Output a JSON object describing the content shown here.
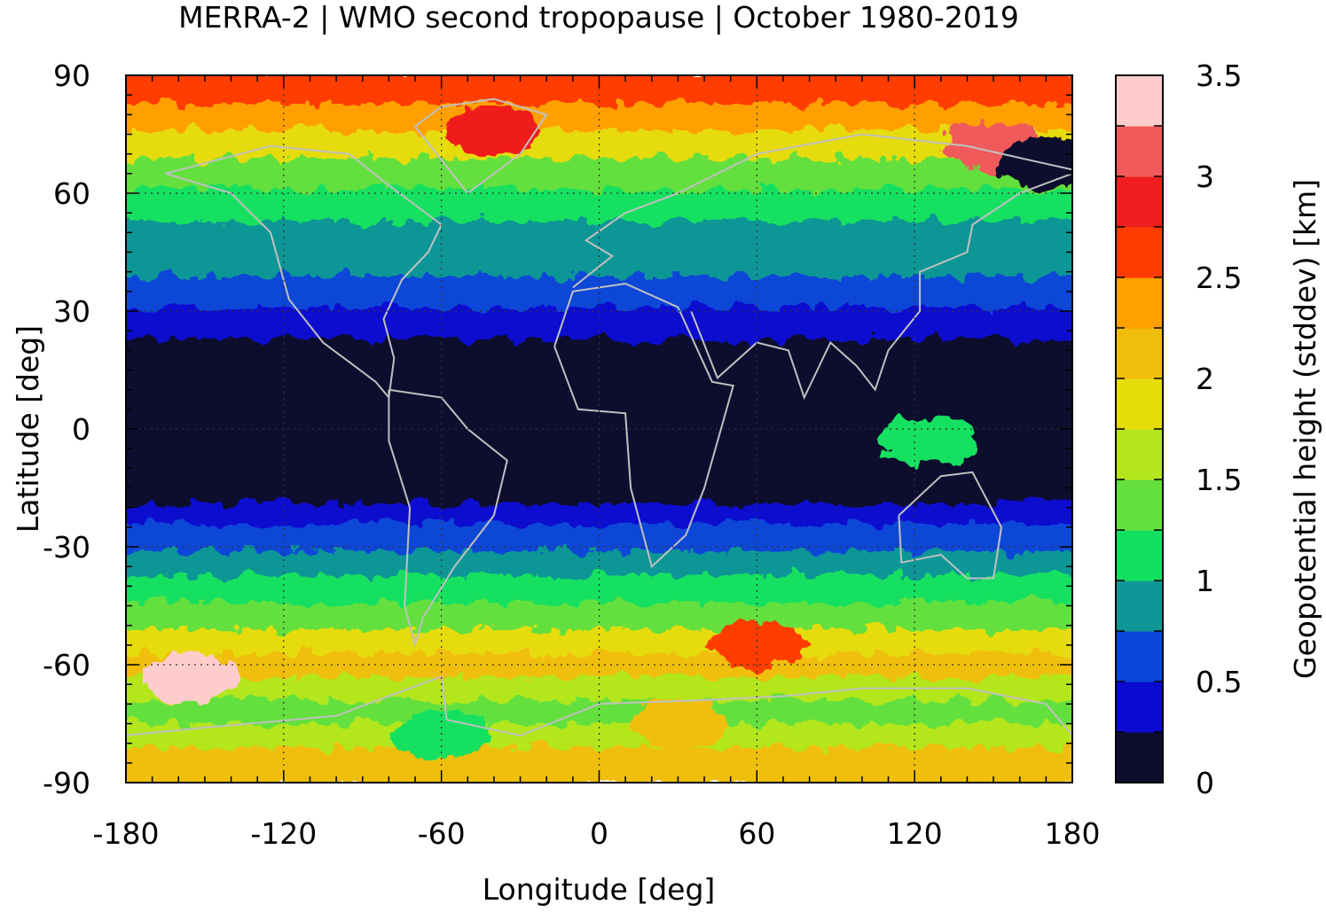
{
  "title": "MERRA-2 | WMO second tropopause | October 1980-2019",
  "xlabel": "Longitude [deg]",
  "ylabel": "Latitude [deg]",
  "x_ticks": [
    "-180",
    "-120",
    "-60",
    "0",
    "60",
    "120",
    "180"
  ],
  "y_ticks": [
    "90",
    "60",
    "30",
    "0",
    "-30",
    "-60",
    "-90"
  ],
  "colorbar": {
    "label": "Geopotential height (stddev) [km]",
    "tick_labels": [
      "0",
      "0.5",
      "1",
      "1.5",
      "2",
      "2.5",
      "3",
      "3.5"
    ],
    "range": [
      0,
      3.5
    ],
    "colors": [
      "#0d0d2e",
      "#0a0ad0",
      "#0a46d8",
      "#0f9696",
      "#14e060",
      "#64e03c",
      "#b4e61e",
      "#e6dc0a",
      "#f0be0a",
      "#ffa000",
      "#ff3c00",
      "#f01e1e",
      "#f05a5a",
      "#ffcccc"
    ]
  },
  "chart_data": {
    "type": "heatmap",
    "title": "MERRA-2 | WMO second tropopause | October 1980-2019",
    "xlabel": "Longitude [deg]",
    "ylabel": "Latitude [deg]",
    "xlim": [
      -180,
      180
    ],
    "ylim": [
      -90,
      90
    ],
    "grid": true,
    "colorbar_label": "Geopotential height (stddev) [km]",
    "colorbar_range": [
      0,
      3.5
    ],
    "colorbar_step": 0.25,
    "zonal_mean_profile": {
      "lat": [
        90,
        82,
        75,
        68,
        60,
        52,
        45,
        38,
        30,
        22,
        15,
        8,
        0,
        -8,
        -15,
        -20,
        -25,
        -32,
        -38,
        -45,
        -52,
        -58,
        -64,
        -70,
        -76,
        -82,
        -90
      ],
      "value": [
        2.4,
        2.6,
        2.1,
        1.6,
        1.3,
        1.0,
        0.9,
        0.8,
        0.6,
        0.3,
        0.1,
        0.1,
        0.2,
        0.1,
        0.1,
        0.3,
        0.5,
        0.6,
        0.9,
        1.2,
        1.7,
        2.2,
        1.9,
        1.4,
        1.3,
        1.7,
        2.3
      ]
    },
    "features": [
      {
        "lon": -155,
        "lat": -63,
        "value": 3.3
      },
      {
        "lon": 150,
        "lat": 72,
        "value": 3.2
      },
      {
        "lon": 170,
        "lat": 68,
        "value": 0.1
      },
      {
        "lon": -40,
        "lat": 76,
        "value": 2.8
      },
      {
        "lon": 60,
        "lat": -55,
        "value": 2.6
      },
      {
        "lon": 125,
        "lat": -3,
        "value": 1.2
      },
      {
        "lon": 30,
        "lat": -75,
        "value": 2.2
      },
      {
        "lon": -60,
        "lat": -78,
        "value": 1.0
      }
    ]
  }
}
